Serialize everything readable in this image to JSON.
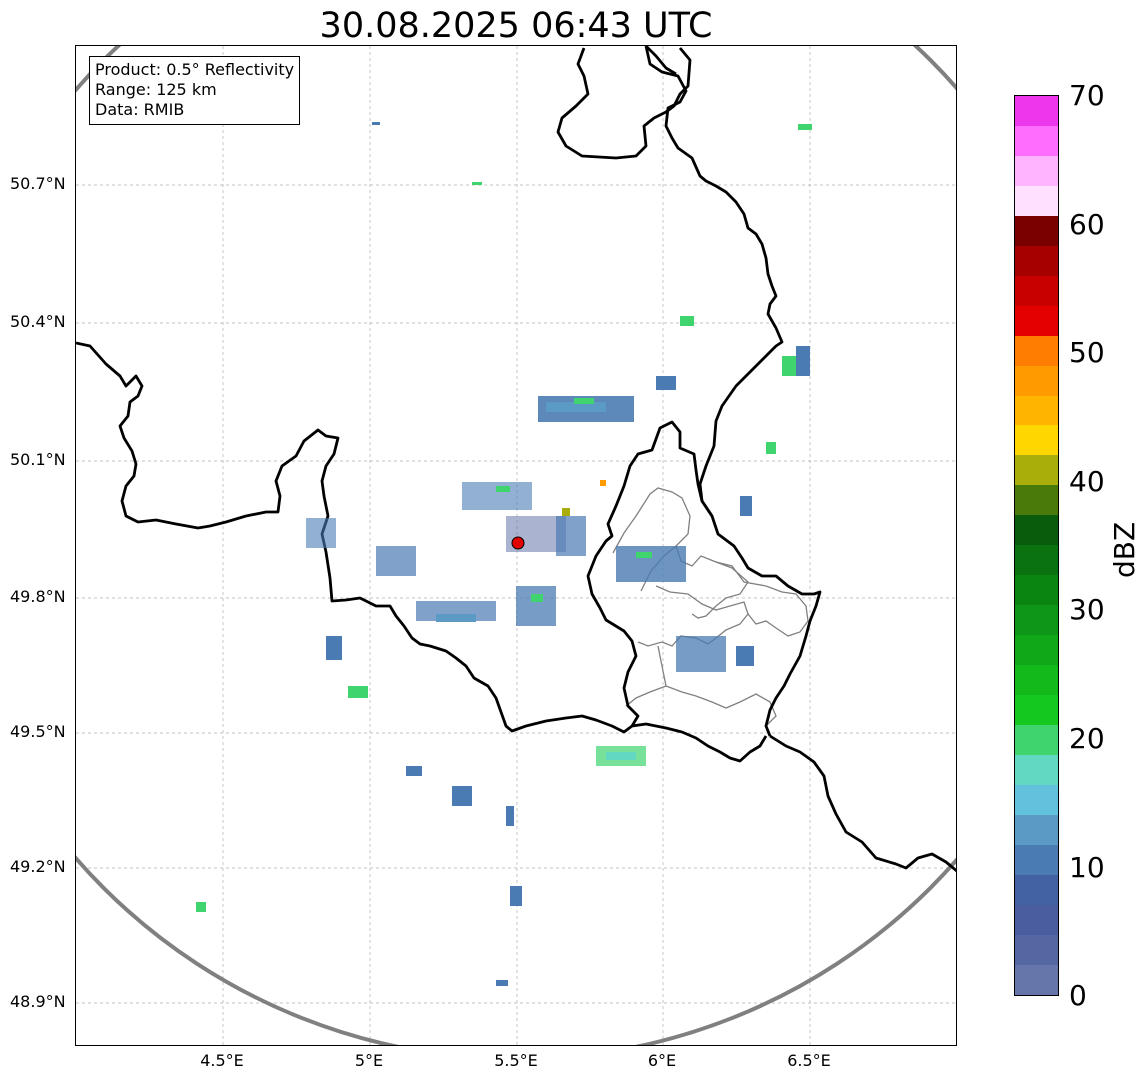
{
  "title": "30.08.2025 06:43 UTC",
  "info": {
    "product": "Product: 0.5° Reflectivity",
    "range": "Range: 125 km",
    "data": "Data: RMIB"
  },
  "axes": {
    "lat_ticks": [
      "50.7°N",
      "50.4°N",
      "50.1°N",
      "49.8°N",
      "49.5°N",
      "49.2°N",
      "48.9°N"
    ],
    "lon_ticks": [
      "4.5°E",
      "5°E",
      "5.5°E",
      "6°E",
      "6.5°E"
    ]
  },
  "colorbar": {
    "label": "dBZ",
    "ticks": [
      "0",
      "10",
      "20",
      "30",
      "40",
      "50",
      "60",
      "70"
    ],
    "colors": [
      "#6676aa",
      "#5567a2",
      "#4a5e9f",
      "#4362a4",
      "#4a7bb3",
      "#5a9ac4",
      "#62c1dc",
      "#62d8c3",
      "#3fd46d",
      "#14c820",
      "#13b81a",
      "#10a718",
      "#0e9616",
      "#0b8512",
      "#0a720f",
      "#095c0b",
      "#497a0a",
      "#a9ae0b",
      "#ffd600",
      "#ffb500",
      "#ff9a00",
      "#ff7d00",
      "#e40000",
      "#c80000",
      "#a60000",
      "#7a0000",
      "#ffe1ff",
      "#ffb4ff",
      "#ff6dff",
      "#ec37ec"
    ]
  },
  "radar_site": {
    "lon": 5.505,
    "lat": 49.914,
    "color": "#e00000"
  }
}
